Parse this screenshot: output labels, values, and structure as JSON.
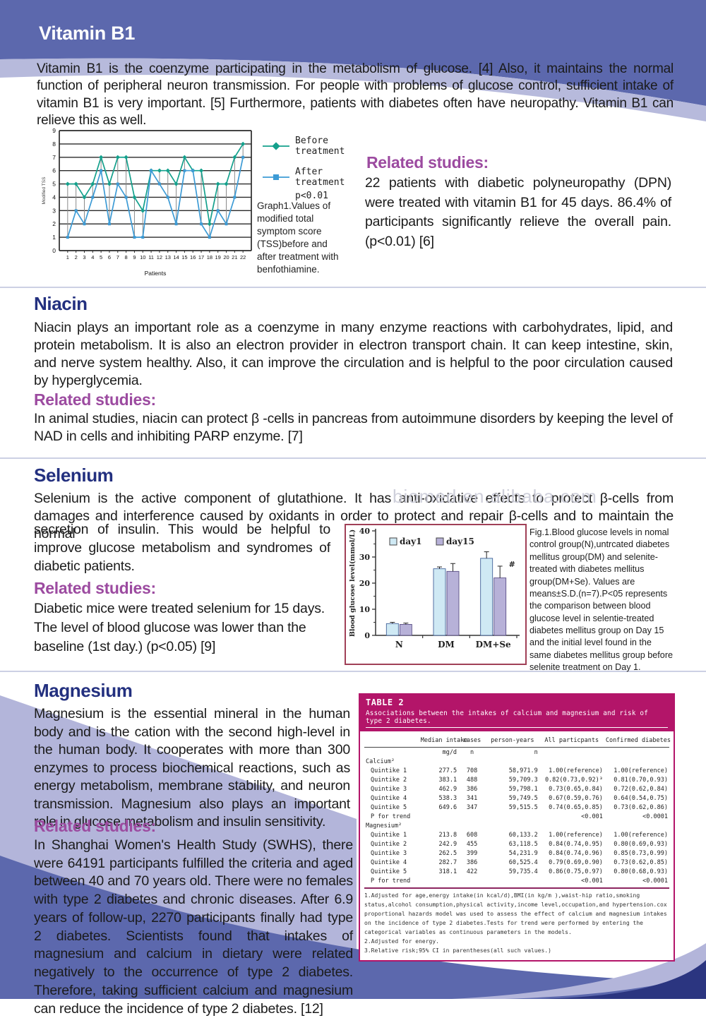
{
  "page": {
    "watermark": "biomed.en.alibaba.com"
  },
  "vitamin_b1": {
    "title": "Vitamin B1",
    "body": "Vitamin B1 is the coenzyme participating in the metabolism of glucose. [4] Also, it maintains the normal function of peripheral neuron transmission. For people with problems of glucose control, sufficient intake of vitamin B1 is very important. [5] Furthermore, patients with diabetes often have neuropathy. Vitamin B1 can relieve this as well.",
    "graph_caption": "Graph1.Values of modified total symptom score (TSS)before and after treatment with benfothiamine.",
    "related_title": "Related studies:",
    "related_body": "22 patients with diabetic polyneuropathy (DPN) were treated with vitamin B1 for 45 days. 86.4% of participants significantly relieve the overall pain. (p<0.01) [6]"
  },
  "niacin": {
    "title": "Niacin",
    "body": "Niacin plays an important role as a coenzyme in many enzyme reactions with carbohydrates, lipid, and protein metabolism. It is also an electron provider in electron transport chain. It can keep intestine, skin, and nerve system healthy. Also, it can improve the circulation and is helpful to the poor circulation caused by hyperglycemia.",
    "related_title": "Related studies:",
    "related_body": "In animal studies, niacin can protect β -cells in pancreas from autoimmune disorders by keeping the level of NAD in cells and inhibiting PARP enzyme. [7]"
  },
  "selenium": {
    "title": "Selenium",
    "body_full": "Selenium is the active component of glutathione. It has anti-oxidative effects to protect β-cells from damages and interference caused by oxidants in order to protect and repair β-cells and to maintain the normal",
    "body_col": "secretion of insulin. This would be helpful to improve glucose metabolism and syndromes of diabetic patients.",
    "related_title": "Related studies:",
    "related_body": "Diabetic mice were treated selenium for 15 days. The level of blood glucose was lower than the baseline (1st day.) (p<0.05) [9]",
    "fig_caption": "Fig.1.Blood glucose levels in nomal control group(N),untrcated diabetes mellitus group(DM) and selenite-treated with diabetes mellitus group(DM+Se). Values are means±S.D.(n=7).P<05 represents the comparison between blood glucose level in selentie-treated diabetes mellitus group on Day 15 and the initial level found in the same diabetes mellitus group before selenite treatment on Day 1."
  },
  "magnesium": {
    "title": "Magnesium",
    "body": "Magnesium is the essential mineral in the human body and is the cation with the second high-level in the human body. It cooperates with more than 300 enzymes to process biochemical reactions, such as energy metabolism, membrane stability, and neuron transmission. Magnesium also plays an important role in glucose metabolism and insulin sensitivity.",
    "related_title": "Related studies:",
    "related_body": "In Shanghai Women's Health Study (SWHS), there were 64191 participants fulfilled the criteria and aged between 40 and 70 years old. There were no females with type 2 diabetes and chronic diseases. After 6.9 years of follow-up, 2270 participants finally had type 2 diabetes. Scientists found that intakes of magnesium and calcium in dietary were related negatively to the occurrence of type 2 diabetes. Therefore, taking sufficient calcium and magnesium can reduce the incidence of type 2 diabetes. [12]"
  },
  "chart_data": [
    {
      "type": "line",
      "title": "Graph1",
      "xlabel": "Patients",
      "ylabel": "Modified TSS",
      "x": [
        1,
        2,
        3,
        4,
        5,
        6,
        7,
        8,
        9,
        10,
        11,
        12,
        13,
        14,
        15,
        16,
        17,
        18,
        19,
        20,
        21,
        22
      ],
      "ylim": [
        0,
        9
      ],
      "grid": true,
      "legend_position": "right",
      "series": [
        {
          "name": "Before treatment",
          "note": "",
          "marker": "diamond",
          "color": "#14a08c",
          "values": [
            5,
            5,
            4,
            5,
            7,
            5,
            7,
            7,
            4,
            3,
            6,
            6,
            6,
            5,
            7,
            6,
            6,
            2,
            5,
            5,
            7,
            8
          ]
        },
        {
          "name": "After treatment",
          "note": "p<0.01",
          "marker": "square",
          "color": "#3d9bd5",
          "values": [
            1,
            3,
            2,
            4,
            6,
            2,
            5,
            4,
            1,
            1,
            6,
            5,
            4,
            2,
            6,
            6,
            2,
            1,
            3,
            2,
            4,
            7
          ]
        }
      ]
    },
    {
      "type": "bar",
      "categories": [
        "N",
        "DM",
        "DM+Se"
      ],
      "ylabel": "Blood glucose level(mmol/L)",
      "ylim": [
        0,
        40
      ],
      "yticks": [
        0,
        10,
        20,
        30,
        40
      ],
      "annotation": "#",
      "annotation_target": {
        "category": "DM+Se",
        "series": "day15"
      },
      "legend_position": "top-inside",
      "series": [
        {
          "name": "day1",
          "color": "#cfe9f4",
          "border": "#44639a",
          "values": [
            4.5,
            25.5,
            29.5
          ],
          "errors": [
            0.5,
            0.7,
            2.5
          ]
        },
        {
          "name": "day15",
          "color": "#b7b1d8",
          "border": "#5a4f86",
          "values": [
            4.2,
            24.5,
            22.0
          ],
          "errors": [
            0.5,
            3.0,
            4.5
          ]
        }
      ]
    }
  ],
  "table2": {
    "title": "TABLE 2",
    "subtitle": "Associations between the intakes of calcium and magnesium and risk of type 2 diabetes.",
    "columns": [
      "",
      "Median intake",
      "cases",
      "person-years",
      "All particpants",
      "Confirmed diabetes"
    ],
    "units": [
      "",
      "mg/d",
      "n",
      "n",
      "",
      ""
    ],
    "sections": [
      {
        "label": "Calcium²",
        "rows": [
          [
            "Quintike 1",
            "277.5",
            "708",
            "58,971.9",
            "1.00(reference)",
            "1.00(reference)"
          ],
          [
            "Quintike 2",
            "383.1",
            "488",
            "59,709.3",
            "0.82(0.73,0.92)³",
            "0.81(0.70,0.93)"
          ],
          [
            "Quintike 3",
            "462.9",
            "386",
            "59,798.1",
            "0.73(0.65,0.84)",
            "0.72(0.62,0.84)"
          ],
          [
            "Quintike 4",
            "538.3",
            "341",
            "59,749.5",
            "0.67(0.59,0.76)",
            "0.64(0.54,0.75)"
          ],
          [
            "Quintike 5",
            "649.6",
            "347",
            "59,515.5",
            "0.74(0.65,0.85)",
            "0.73(0.62,0.86)"
          ]
        ],
        "p_for_trend": [
          "P for trend",
          "",
          "",
          "",
          "<0.001",
          "<0.0001"
        ]
      },
      {
        "label": "Magnesium²",
        "rows": [
          [
            "Quintike 1",
            "213.8",
            "608",
            "60,133.2",
            "1.00(reference)",
            "1.00(reference)"
          ],
          [
            "Quintike 2",
            "242.9",
            "455",
            "63,118.5",
            "0.84(0.74,0.95)",
            "0.80(0.69,0.93)"
          ],
          [
            "Quintike 3",
            "262.5",
            "399",
            "54,231.9",
            "0.84(0.74,0.96)",
            "0.85(0.73,0.99)"
          ],
          [
            "Quintike 4",
            "282.7",
            "386",
            "60,525.4",
            "0.79(0.69,0.90)",
            "0.73(0.62,0.85)"
          ],
          [
            "Quintike 5",
            "318.1",
            "422",
            "59,735.4",
            "0.86(0.75,0.97)",
            "0.80(0.68,0.93)"
          ]
        ],
        "p_for_trend": [
          "P for trend",
          "",
          "",
          "",
          "<0.001",
          "<0.0001"
        ]
      }
    ],
    "footnotes": [
      "1.Adjusted for age,energy intake(in kcal/d),BMI(in kg/m ),waist-hip ratio,smoking status,alcohol consumption,physical activity,income level,occupation,and hypertension.cox proportional hazards model was used to assess the effect of calcium and magnesium intakes on the incidence of type 2 diabetes.Tests for trend were performed by entering the categorical variables as continuous parameters in the models.",
      "2.Adjusted for energy.",
      "3.Relative risk;95% CI in parentheses(all such values.)"
    ]
  }
}
